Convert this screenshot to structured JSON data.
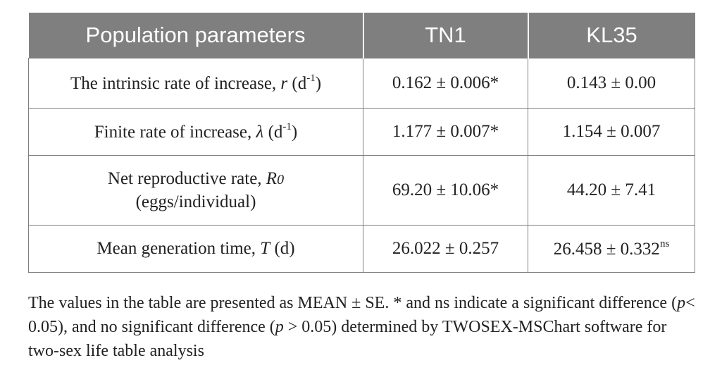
{
  "table": {
    "headers": [
      "Population parameters",
      "TN1",
      "KL35"
    ],
    "rows": [
      {
        "param": {
          "prefix": "The intrinsic rate of increase, ",
          "symbol": "r",
          "paren_open": " (d",
          "sup": "-1",
          "paren_close": ")"
        },
        "tn1": "0.162 ± 0.006*",
        "kl35": {
          "value": "0.143 ± 0.00",
          "sup": ""
        }
      },
      {
        "param": {
          "prefix": "Finite rate of increase, ",
          "symbol": "λ",
          "paren_open": " (d",
          "sup": "-1",
          "paren_close": ")"
        },
        "tn1": "1.177 ± 0.007*",
        "kl35": {
          "value": "1.154 ± 0.007",
          "sup": ""
        }
      },
      {
        "param": {
          "prefix": "Net reproductive rate, ",
          "symbol": "R",
          "sub": "0",
          "line2": "(eggs/individual)"
        },
        "tn1": "69.20 ± 10.06*",
        "kl35": {
          "value": "44.20 ± 7.41",
          "sup": ""
        }
      },
      {
        "param": {
          "prefix": "Mean generation time, ",
          "symbol": "T",
          "suffix": " (d)"
        },
        "tn1": "26.022 ± 0.257",
        "kl35": {
          "value": "26.458 ± 0.332",
          "sup": "ns"
        }
      }
    ]
  },
  "footnote": {
    "part1": "The values in the table are presented as MEAN ± SE. * and ns indicate a significant difference (",
    "p1": "p",
    "part2": "< 0.05), and no significant difference (",
    "p2": "p",
    "part3": " > 0.05) determined by TWOSEX-MSChart software for two-sex life table analysis"
  }
}
